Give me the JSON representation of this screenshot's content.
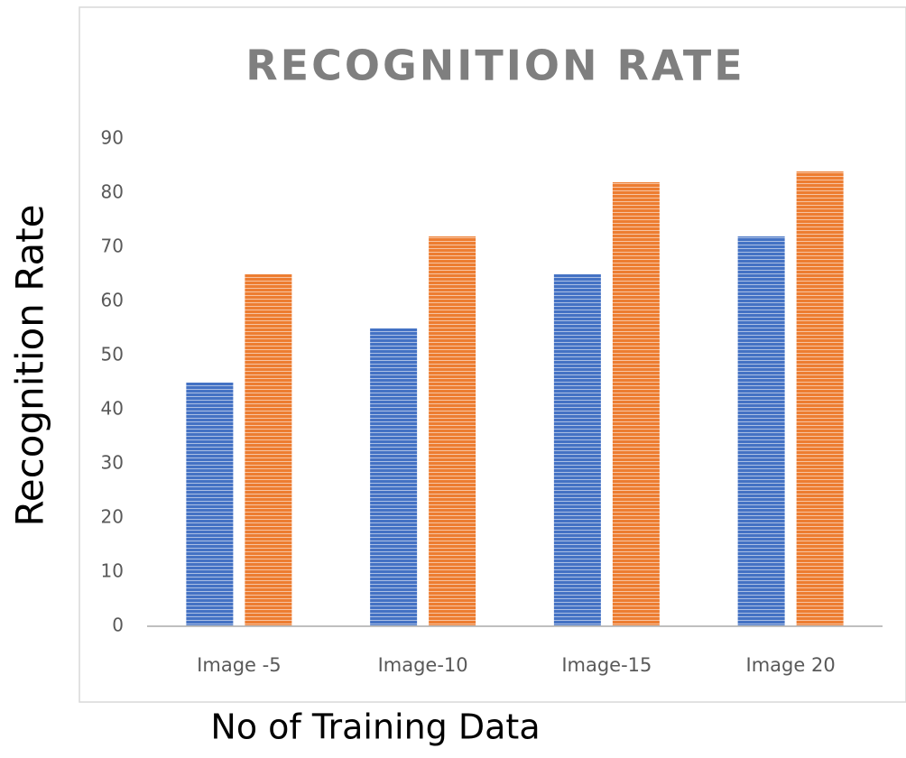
{
  "chart_data": {
    "type": "bar",
    "title": "RECOGNITION RATE",
    "xlabel": "No of Training Data",
    "ylabel": "Recognition Rate",
    "categories": [
      "Image -5",
      "Image-10",
      "Image-15",
      "Image 20"
    ],
    "series": [
      {
        "color": "#4472c4",
        "values": [
          45,
          55,
          65,
          72
        ]
      },
      {
        "color": "#ed7d31",
        "values": [
          65,
          72,
          82,
          84
        ]
      }
    ],
    "ylim": [
      0,
      90
    ],
    "yticks": [
      0,
      10,
      20,
      30,
      40,
      50,
      60,
      70,
      80,
      90
    ],
    "grid": false
  }
}
